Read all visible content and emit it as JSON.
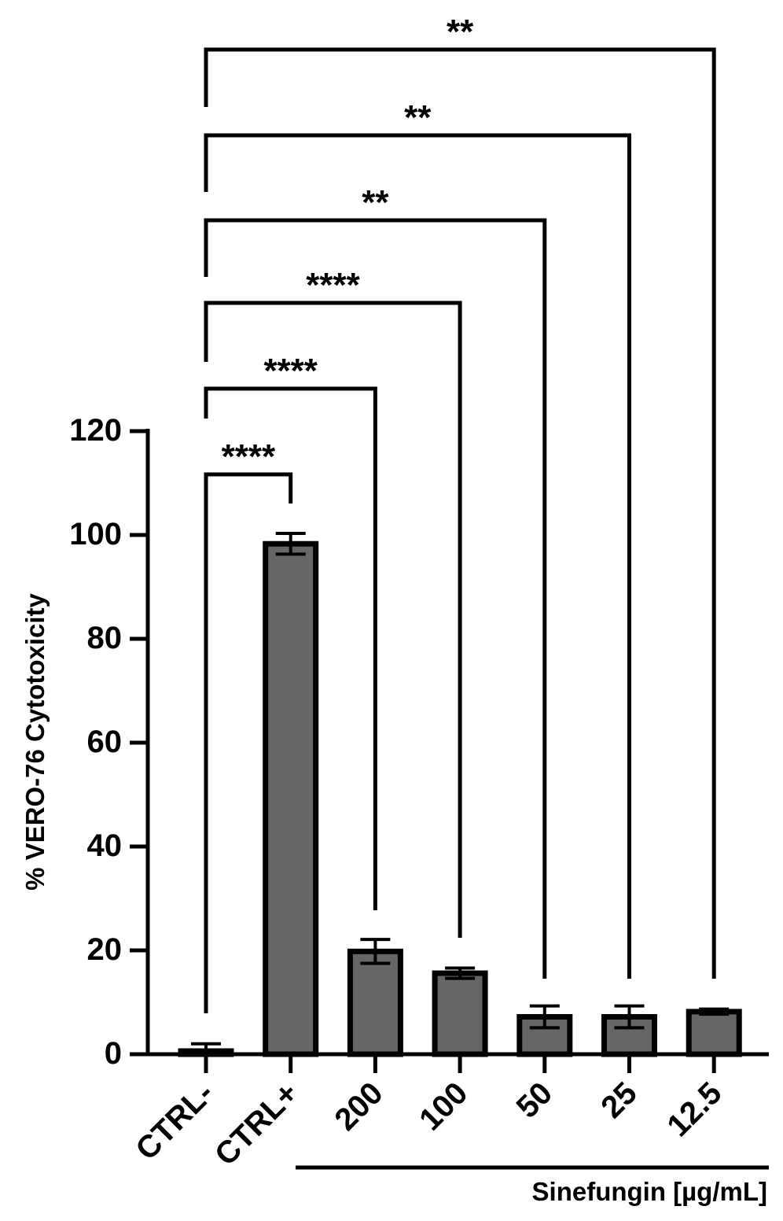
{
  "chart_data": {
    "type": "bar",
    "ylabel": "% VERO-76 Cytotoxicity",
    "xlabel": "",
    "ylim": [
      0,
      120
    ],
    "yticks": [
      0,
      20,
      40,
      60,
      80,
      100,
      120
    ],
    "categories": [
      "CTRL-",
      "CTRL+",
      "200",
      "100",
      "50",
      "25",
      "12.5"
    ],
    "values": [
      0.6,
      98.3,
      19.8,
      15.6,
      7.2,
      7.2,
      8.2
    ],
    "errors": [
      1.4,
      2.0,
      2.3,
      1.0,
      2.1,
      2.1,
      0.5
    ],
    "bar_color": "#666666",
    "group_label": "Sinefungin [µg/mL]",
    "group_categories": [
      "200",
      "100",
      "50",
      "25",
      "12.5"
    ],
    "comparisons": [
      {
        "from": "CTRL-",
        "to": "CTRL+",
        "label": "****"
      },
      {
        "from": "CTRL-",
        "to": "200",
        "label": "****"
      },
      {
        "from": "CTRL-",
        "to": "100",
        "label": "****"
      },
      {
        "from": "CTRL-",
        "to": "50",
        "label": "**"
      },
      {
        "from": "CTRL-",
        "to": "25",
        "label": "**"
      },
      {
        "from": "CTRL-",
        "to": "12.5",
        "label": "**"
      }
    ]
  }
}
